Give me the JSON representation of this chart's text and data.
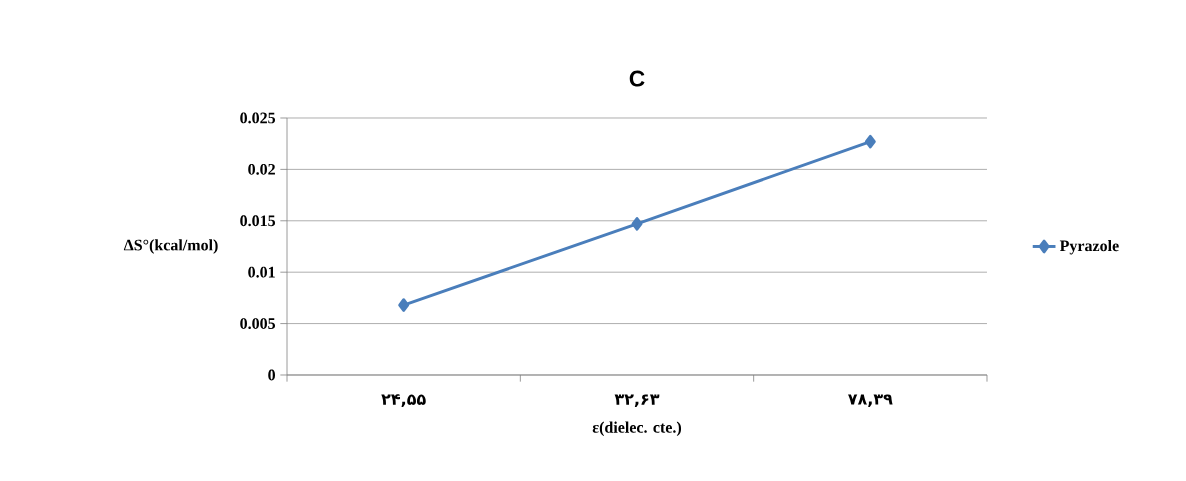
{
  "chart_data": {
    "type": "line",
    "title": "C",
    "xlabel": "ε(dielec. cte.)",
    "ylabel": "ΔS°(kcal/mol)",
    "categories": [
      "۲۴,۵۵",
      "۳۲,۶۳",
      "۷۸,۳۹"
    ],
    "series": [
      {
        "name": "Pyrazole",
        "color": "#4a7ebb",
        "values": [
          0.0068,
          0.0147,
          0.0227
        ]
      }
    ],
    "ylim": [
      0,
      0.025
    ],
    "yticks": [
      0,
      0.005,
      0.01,
      0.015,
      0.02,
      0.025
    ],
    "grid": "y",
    "legend": "right",
    "marker": "diamond",
    "line_style": "solid"
  }
}
